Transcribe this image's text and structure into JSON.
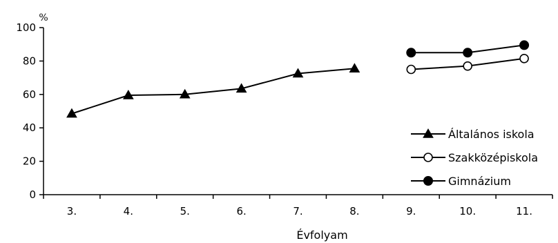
{
  "chart_data": {
    "type": "line",
    "categories": [
      "3.",
      "4.",
      "5.",
      "6.",
      "7.",
      "8.",
      "9.",
      "10.",
      "11."
    ],
    "xlabel": "Évfolyam",
    "ylabel": "%",
    "ylim": [
      0,
      100
    ],
    "yticks": [
      0,
      20,
      40,
      60,
      80,
      100
    ],
    "grid": false,
    "legend_position": "right",
    "series": [
      {
        "name": "Általános iskola",
        "marker": "triangle-filled",
        "color": "#000000",
        "values": [
          48.5,
          59.5,
          60,
          63.5,
          72.5,
          75.5,
          null,
          null,
          null
        ]
      },
      {
        "name": "Szakközépiskola",
        "marker": "circle-open",
        "color": "#000000",
        "values": [
          null,
          null,
          null,
          null,
          null,
          null,
          75,
          77,
          81.5
        ]
      },
      {
        "name": "Gimnázium",
        "marker": "circle-filled",
        "color": "#000000",
        "values": [
          null,
          null,
          null,
          null,
          null,
          null,
          85,
          85,
          89.5
        ]
      }
    ]
  }
}
